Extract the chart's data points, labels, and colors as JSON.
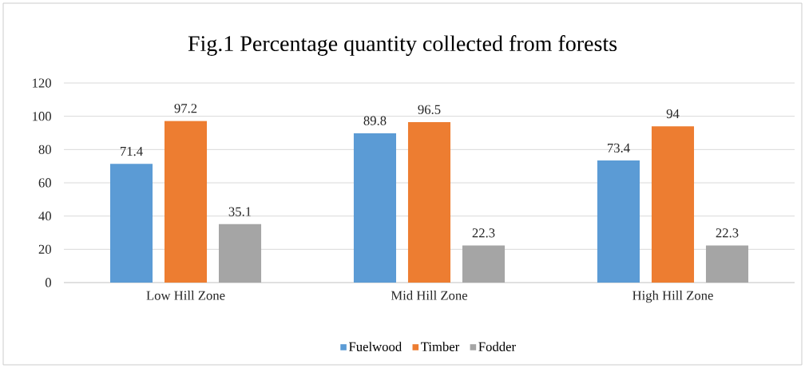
{
  "chart_data": {
    "type": "bar",
    "title": "Fig.1 Percentage quantity collected from forests",
    "categories": [
      "Low Hill Zone",
      "Mid Hill Zone",
      "High Hill Zone"
    ],
    "series": [
      {
        "name": "Fuelwood",
        "color": "#5b9bd5",
        "values": [
          71.4,
          89.8,
          73.4
        ]
      },
      {
        "name": "Timber",
        "color": "#ed7d31",
        "values": [
          97.2,
          96.5,
          94
        ]
      },
      {
        "name": "Fodder",
        "color": "#a5a5a5",
        "values": [
          35.1,
          22.3,
          22.3
        ]
      }
    ],
    "ylim": [
      0,
      120
    ],
    "yticks": [
      0,
      20,
      40,
      60,
      80,
      100,
      120
    ],
    "grid": "y",
    "legend": "bottom",
    "data_labels": true
  }
}
